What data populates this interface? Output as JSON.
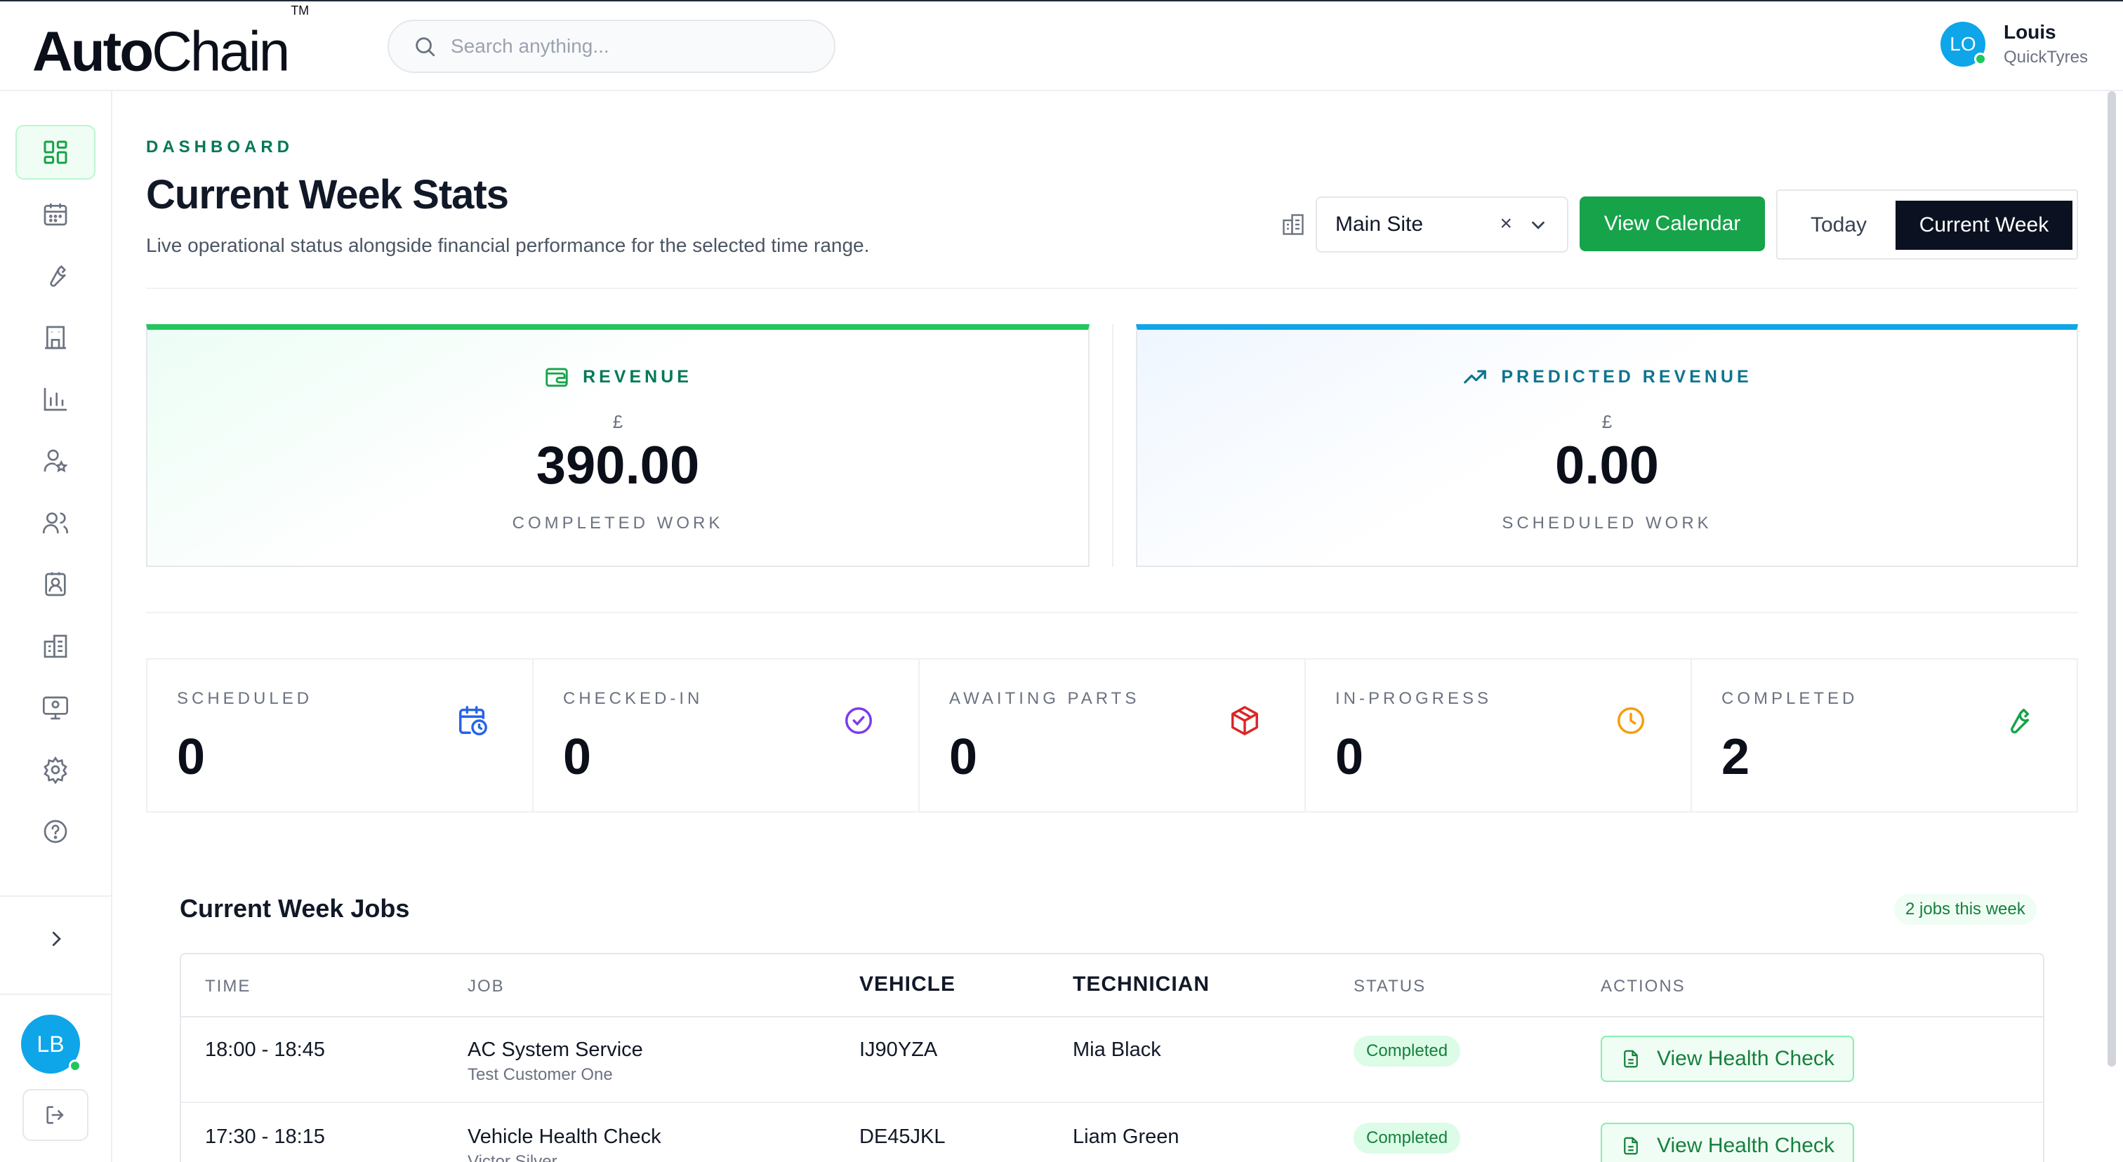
{
  "brand": {
    "name_bold": "Auto",
    "name_light": "Chain",
    "tm": "TM"
  },
  "search": {
    "placeholder": "Search anything..."
  },
  "user": {
    "initials": "LO",
    "name": "Louis",
    "org": "QuickTyres"
  },
  "sidebar": {
    "items": [
      {
        "icon": "dashboard-icon",
        "active": true
      },
      {
        "icon": "calendar-icon"
      },
      {
        "icon": "wrench-icon"
      },
      {
        "icon": "building-icon"
      },
      {
        "icon": "bar-chart-icon"
      },
      {
        "icon": "user-star-icon"
      },
      {
        "icon": "users-icon"
      },
      {
        "icon": "contact-card-icon"
      },
      {
        "icon": "offices-icon"
      },
      {
        "icon": "monitor-user-icon"
      },
      {
        "icon": "gear-icon"
      },
      {
        "icon": "help-icon"
      }
    ],
    "profile_initials": "LB"
  },
  "header": {
    "eyebrow": "DASHBOARD",
    "title": "Current Week Stats",
    "subtitle": "Live operational status alongside financial performance for the selected time range."
  },
  "controls": {
    "site_value": "Main Site",
    "clear_glyph": "×",
    "view_calendar_label": "View Calendar",
    "range_today": "Today",
    "range_week": "Current Week",
    "range_selected": "Current Week"
  },
  "revenue": {
    "title": "REVENUE",
    "currency": "£",
    "value": "390.00",
    "note": "COMPLETED WORK",
    "accent": "#22c55e"
  },
  "predicted": {
    "title": "PREDICTED REVENUE",
    "currency": "£",
    "value": "0.00",
    "note": "SCHEDULED WORK",
    "accent": "#0ea5e9"
  },
  "stats": [
    {
      "label": "SCHEDULED",
      "value": "0",
      "icon": "calendar-clock-icon",
      "color": "#2563eb"
    },
    {
      "label": "CHECKED-IN",
      "value": "0",
      "icon": "check-circle-icon",
      "color": "#7c3aed"
    },
    {
      "label": "AWAITING PARTS",
      "value": "0",
      "icon": "package-icon",
      "color": "#dc2626"
    },
    {
      "label": "IN-PROGRESS",
      "value": "0",
      "icon": "clock-icon",
      "color": "#f59e0b"
    },
    {
      "label": "COMPLETED",
      "value": "2",
      "icon": "wrench-icon",
      "color": "#16a34a"
    }
  ],
  "jobs": {
    "title": "Current Week Jobs",
    "badge": "2 jobs this week",
    "columns": {
      "time": "TIME",
      "job": "JOB",
      "vehicle": "VEHICLE",
      "technician": "TECHNICIAN",
      "status": "STATUS",
      "actions": "ACTIONS"
    },
    "rows": [
      {
        "time": "18:00 - 18:45",
        "job": "AC System Service",
        "customer": "Test Customer One",
        "vehicle": "IJ90YZA",
        "technician": "Mia Black",
        "status": "Completed",
        "action": "View Health Check"
      },
      {
        "time": "17:30 - 18:15",
        "job": "Vehicle Health Check",
        "customer": "Victor Silver",
        "vehicle": "DE45JKL",
        "technician": "Liam Green",
        "status": "Completed",
        "action": "View Health Check"
      }
    ]
  }
}
